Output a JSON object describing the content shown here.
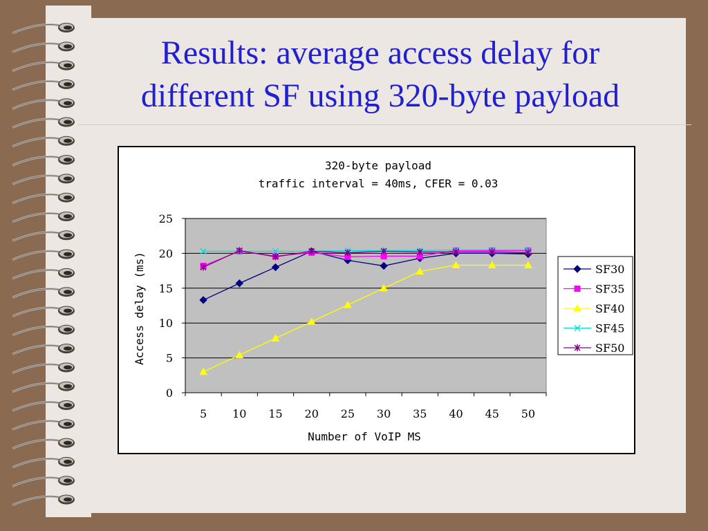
{
  "slide": {
    "title_line1": "Results: average access delay for",
    "title_line2": "different SF using 320-byte payload"
  },
  "colors": {
    "background": "#8b6a52",
    "page": "#ece7e3",
    "title": "#2020d0",
    "plot_area": "#c0c0c0"
  },
  "chart_data": {
    "type": "line",
    "title": "320-byte payload",
    "subtitle": "traffic interval = 40ms, CFER = 0.03",
    "xlabel": "Number of VoIP MS",
    "ylabel": "Access delay (ms)",
    "categories": [
      "5",
      "10",
      "15",
      "20",
      "25",
      "30",
      "35",
      "40",
      "45",
      "50"
    ],
    "ylim": [
      0,
      25
    ],
    "yticks": [
      0,
      5,
      10,
      15,
      20,
      25
    ],
    "grid": true,
    "legend_position": "right",
    "series": [
      {
        "name": "SF30",
        "color": "#000080",
        "marker": "diamond",
        "values": [
          13.3,
          15.7,
          18.0,
          20.3,
          19.0,
          18.2,
          19.3,
          20.0,
          20.0,
          19.9
        ]
      },
      {
        "name": "SF35",
        "color": "#ff00ff",
        "marker": "square",
        "values": [
          18.2,
          20.3,
          19.6,
          20.1,
          19.5,
          19.6,
          19.6,
          20.4,
          20.4,
          20.4
        ]
      },
      {
        "name": "SF40",
        "color": "#ffff00",
        "marker": "triangle",
        "values": [
          3.0,
          5.4,
          7.8,
          10.2,
          12.6,
          15.0,
          17.4,
          18.3,
          18.3,
          18.3
        ]
      },
      {
        "name": "SF45",
        "color": "#00e0e0",
        "marker": "x",
        "values": [
          20.3,
          20.3,
          20.3,
          20.3,
          20.4,
          20.4,
          20.4,
          20.5,
          20.5,
          20.5
        ]
      },
      {
        "name": "SF50",
        "color": "#800080",
        "marker": "star",
        "values": [
          18.0,
          20.4,
          19.5,
          20.3,
          20.1,
          20.3,
          20.2,
          20.2,
          20.2,
          20.1
        ]
      }
    ]
  }
}
